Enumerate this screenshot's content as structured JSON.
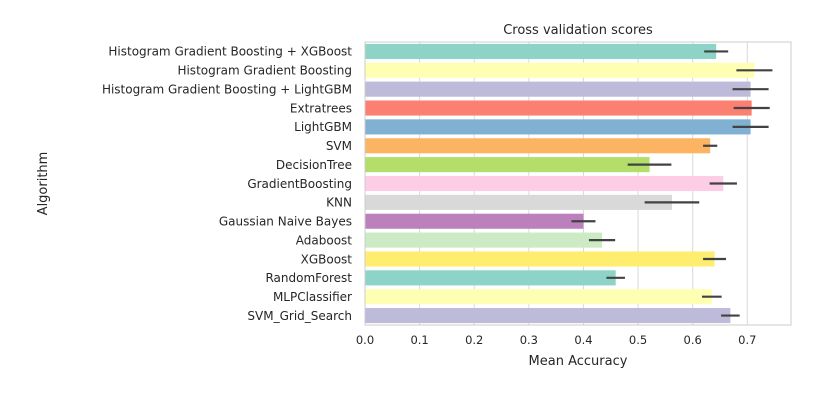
{
  "chart_data": {
    "type": "bar",
    "orientation": "horizontal",
    "title": "Cross validation scores",
    "xlabel": "Mean Accuracy",
    "ylabel": "Algorithm",
    "xlim": [
      0,
      0.78
    ],
    "xticks": [
      "0.0",
      "0.1",
      "0.2",
      "0.3",
      "0.4",
      "0.5",
      "0.6",
      "0.7"
    ],
    "grid": "vertical",
    "legend": "none",
    "categories": [
      "Histogram Gradient Boosting + XGBoost",
      "Histogram Gradient Boosting",
      "Histogram Gradient Boosting + LightGBM",
      "Extratrees",
      "LightGBM",
      "SVM",
      "DecisionTree",
      "GradientBoosting",
      "KNN",
      "Gaussian Naive Bayes",
      "Adaboost",
      "XGBoost",
      "RandomForest",
      "MLPClassifier",
      "SVM_Grid_Search"
    ],
    "values": [
      0.643,
      0.713,
      0.706,
      0.708,
      0.706,
      0.632,
      0.521,
      0.656,
      0.562,
      0.4,
      0.434,
      0.64,
      0.459,
      0.635,
      0.669
    ],
    "errors": [
      0.022,
      0.033,
      0.033,
      0.033,
      0.033,
      0.013,
      0.04,
      0.025,
      0.05,
      0.022,
      0.024,
      0.021,
      0.017,
      0.018,
      0.017
    ],
    "colors": [
      "#8dd3c7",
      "#ffffb3",
      "#bebada",
      "#fb8072",
      "#80b1d3",
      "#fdb462",
      "#b3de69",
      "#fccde5",
      "#d9d9d9",
      "#bc80bd",
      "#ccebc5",
      "#ffed6f",
      "#8dd3c7",
      "#ffffb3",
      "#bebada"
    ]
  }
}
